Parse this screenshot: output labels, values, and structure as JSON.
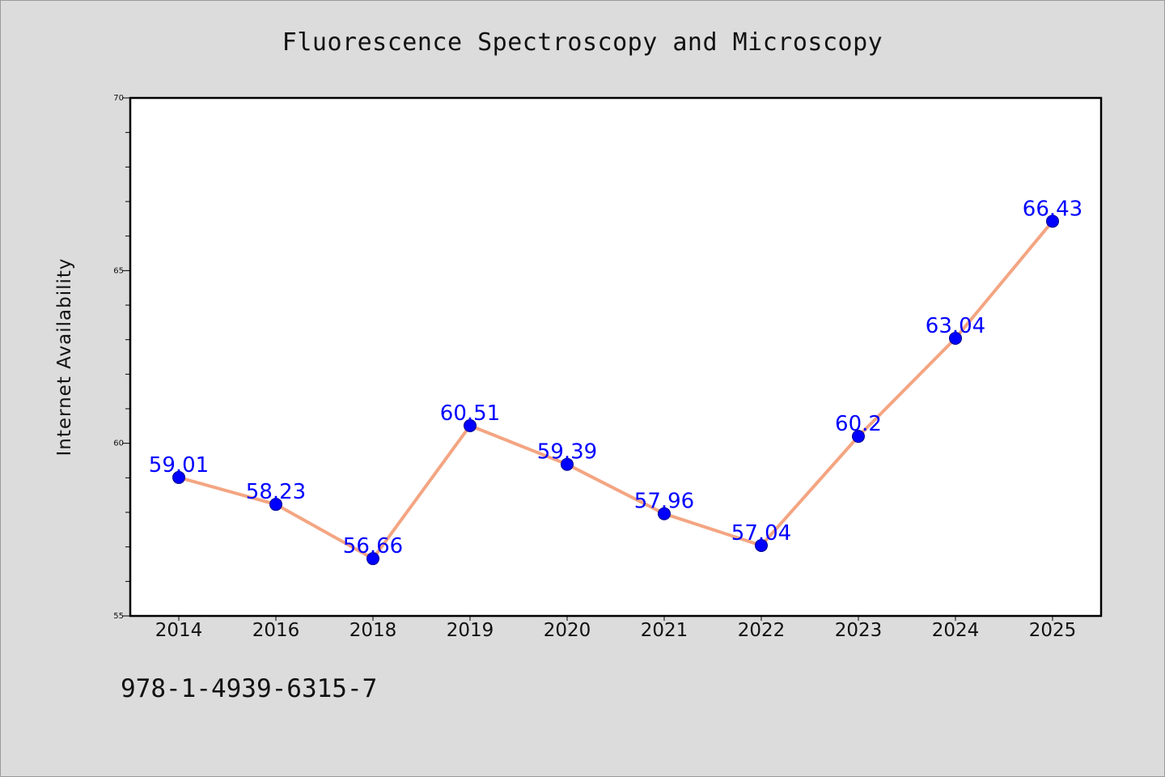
{
  "chart_data": {
    "type": "line",
    "title": "Fluorescence Spectroscopy and Microscopy",
    "ylabel": "Internet Availability",
    "xlabel": "",
    "categories": [
      "2014",
      "2016",
      "2018",
      "2019",
      "2020",
      "2021",
      "2022",
      "2023",
      "2024",
      "2025"
    ],
    "series": [
      {
        "values": [
          59.01,
          58.23,
          56.66,
          60.51,
          59.39,
          57.96,
          57.04,
          60.2,
          63.04,
          66.43
        ],
        "value_labels": [
          "59.01",
          "58.23",
          "56.66",
          "60.51",
          "59.39",
          "57.96",
          "57.04",
          "60.2",
          "63.04",
          "66.43"
        ],
        "line_color": "#f4a582",
        "marker_color": "#0000ff",
        "label_color": "#0000ff"
      }
    ],
    "ylim": [
      55,
      70
    ],
    "yticks": [
      "55",
      "60",
      "65",
      "70"
    ],
    "grid": false,
    "legend": "none"
  },
  "footer": {
    "identifier": "978-1-4939-6315-7"
  },
  "colors": {
    "background": "#dcdcdc",
    "plot_background": "#ffffff",
    "axis": "#000000"
  }
}
